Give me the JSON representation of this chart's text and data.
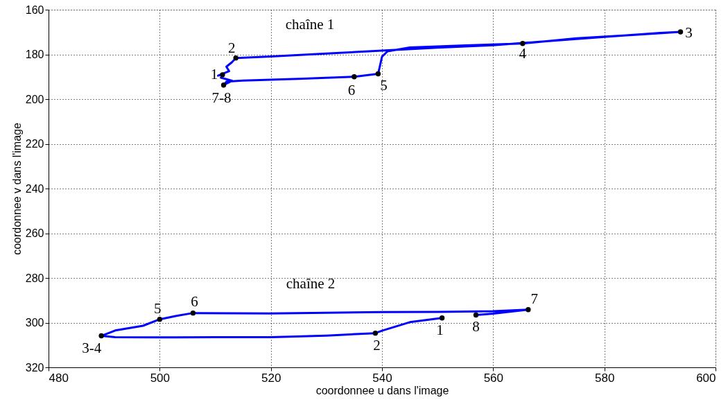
{
  "chart_data": {
    "type": "line",
    "xlabel": "coordonnee u dans l'image",
    "ylabel": "coordonnee v dans l'image",
    "xlim": [
      480,
      600
    ],
    "xticks": [
      480,
      500,
      520,
      540,
      560,
      580,
      600
    ],
    "ylim": [
      320,
      160
    ],
    "yticks": [
      160,
      180,
      200,
      220,
      240,
      260,
      280,
      300,
      320
    ],
    "grid": true,
    "line_style": "solid",
    "series": [
      {
        "name": "chaîne 1",
        "color": "#0000ff",
        "x": [
          511.3,
          510.5,
          512.5,
          512.0,
          513.0,
          513.7,
          520,
          530,
          540,
          550,
          560,
          570,
          580,
          590,
          593.7,
          585,
          575,
          565.3,
          555,
          545,
          541,
          540,
          539.3,
          535,
          525,
          515,
          512,
          511.5,
          513,
          511
        ],
        "values": [
          189.1,
          189.5,
          187.5,
          185.5,
          183.5,
          181.6,
          180.9,
          179.6,
          178.3,
          177.0,
          175.9,
          174.0,
          172.2,
          170.4,
          169.9,
          171.3,
          172.8,
          175.1,
          176.0,
          176.9,
          178.6,
          181.0,
          188.7,
          190.0,
          190.9,
          191.7,
          192.2,
          193.7,
          191.8,
          190.4
        ]
      },
      {
        "name": "chaîne 2",
        "color": "#0000ff",
        "x": [
          550.8,
          545,
          540,
          538.8,
          530,
          520,
          510,
          500,
          492,
          489.5,
          492,
          497,
          500,
          503,
          506,
          520,
          540,
          550,
          560,
          566.3,
          560,
          556.9
        ],
        "values": [
          297.9,
          299.8,
          303.6,
          304.7,
          305.8,
          306.5,
          306.5,
          306.6,
          306.5,
          305.9,
          303.5,
          301.4,
          298.5,
          297.0,
          295.7,
          295.9,
          295.3,
          295.2,
          294.9,
          294.2,
          296.0,
          296.6
        ]
      },
      {
        "type": "scatter",
        "marker": "circle",
        "color": "#000000",
        "x": [
          511.3,
          513.7,
          593.7,
          565.3,
          539.3,
          535.0,
          511.5,
          550.8,
          538.8,
          489.5,
          500.0,
          506.0,
          566.3,
          556.9
        ],
        "values": [
          189.1,
          181.6,
          169.9,
          175.1,
          188.7,
          190.0,
          193.7,
          297.9,
          304.7,
          305.9,
          298.5,
          295.7,
          294.2,
          296.6
        ]
      }
    ],
    "annotations": [
      {
        "text": "1",
        "x": 511.3,
        "y": 189.1
      },
      {
        "text": "2",
        "x": 513.7,
        "y": 181.6
      },
      {
        "text": "3",
        "x": 593.7,
        "y": 169.9
      },
      {
        "text": "4",
        "x": 565.3,
        "y": 175.1
      },
      {
        "text": "5",
        "x": 539.3,
        "y": 188.7
      },
      {
        "text": "6",
        "x": 535.0,
        "y": 190.0
      },
      {
        "text": "7-8",
        "x": 511.5,
        "y": 193.7
      },
      {
        "text": "1",
        "x": 550.8,
        "y": 297.9
      },
      {
        "text": "2",
        "x": 538.8,
        "y": 304.7
      },
      {
        "text": "3-4",
        "x": 489.5,
        "y": 305.9
      },
      {
        "text": "5",
        "x": 500.0,
        "y": 298.5
      },
      {
        "text": "6",
        "x": 506.0,
        "y": 295.7
      },
      {
        "text": "7",
        "x": 566.3,
        "y": 294.2
      },
      {
        "text": "8",
        "x": 556.9,
        "y": 296.6
      }
    ]
  }
}
